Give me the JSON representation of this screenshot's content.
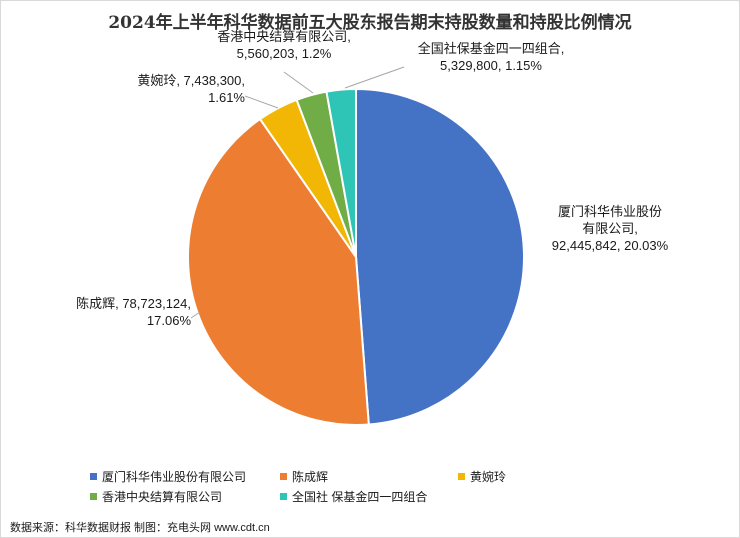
{
  "chart_data": {
    "type": "pie",
    "title": "2024年上半年科华数据前五大股东报告期末持股数量和持股比例情况",
    "slices": [
      {
        "name": "厦门科华伟业股份有限公司",
        "label_lines": [
          "厦门科华伟业股份",
          "有限公司,",
          "92,445,842, 20.03%"
        ],
        "shares": 92445842,
        "percent": 20.03,
        "color": "#4472C4"
      },
      {
        "name": "陈成辉",
        "label_lines": [
          "陈成辉, 78,723,124,",
          "17.06%"
        ],
        "shares": 78723124,
        "percent": 17.06,
        "color": "#ED7D31"
      },
      {
        "name": "黄婉玲",
        "label_lines": [
          "黄婉玲, 7,438,300,",
          "1.61%"
        ],
        "shares": 7438300,
        "percent": 1.61,
        "color": "#F2B705"
      },
      {
        "name": "香港中央结算有限公司",
        "label_lines": [
          "香港中央结算有限公司,",
          "5,560,203, 1.2%"
        ],
        "shares": 5560203,
        "percent": 1.2,
        "color": "#70AD47"
      },
      {
        "name": "全国社保基金四一四组合",
        "label_lines": [
          "全国社保基金四一四组合,",
          "5,329,800, 1.15%"
        ],
        "shares": 5329800,
        "percent": 1.15,
        "color": "#2EC4B6"
      }
    ],
    "legend_position": "bottom"
  },
  "legend": [
    {
      "label": "厦门科华伟业股份有限公司",
      "color": "#4472C4"
    },
    {
      "label": "陈成辉",
      "color": "#ED7D31"
    },
    {
      "label": "黄婉玲",
      "color": "#F2B705"
    },
    {
      "label": "香港中央结算有限公司",
      "color": "#70AD47"
    },
    {
      "label": "全国社 保基金四一四组合",
      "color": "#2EC4B6"
    }
  ],
  "source": "数据来源：科华数据财报  制图：充电头网 www.cdt.cn"
}
